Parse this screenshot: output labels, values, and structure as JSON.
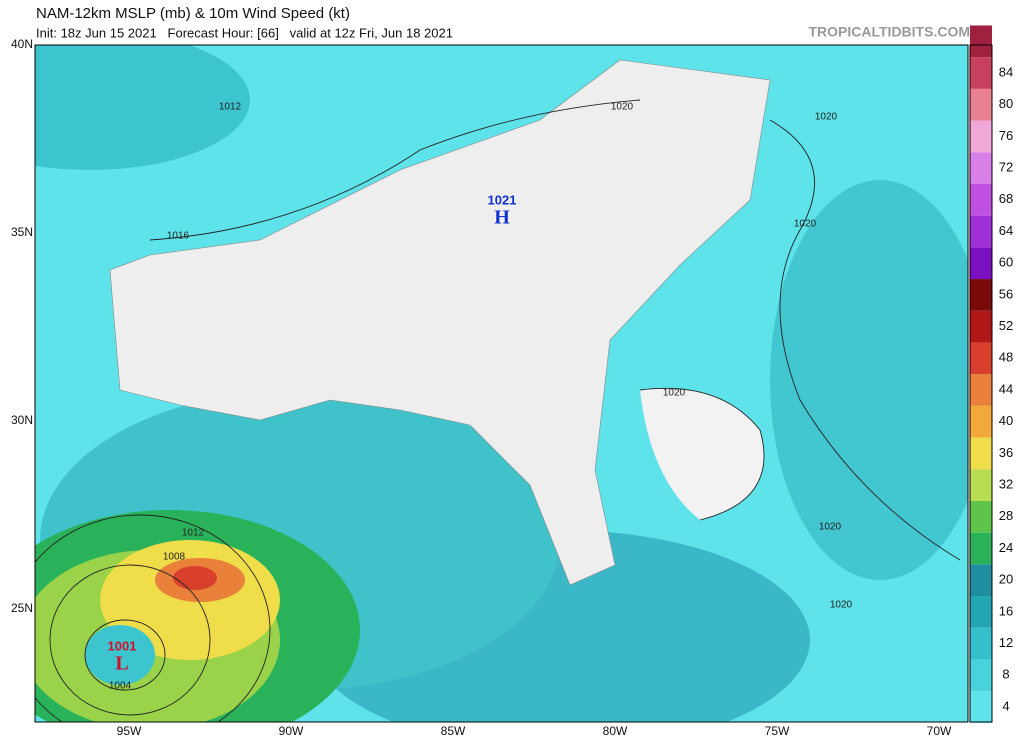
{
  "header": {
    "title": "NAM-12km MSLP (mb) & 10m Wind Speed (kt)",
    "subtitle": "Init: 18z Jun 15 2021   Forecast Hour: [66]   valid at 12z Fri, Jun 18 2021",
    "source": "TROPICALTIDBITS.COM"
  },
  "map": {
    "lat_labels": [
      "40N",
      "35N",
      "30N",
      "25N"
    ],
    "lon_labels": [
      "95W",
      "90W",
      "85W",
      "80W",
      "75W",
      "70W"
    ],
    "isobar_labels": [
      "1012",
      "1016",
      "1020",
      "1020",
      "1020",
      "1020",
      "1020",
      "1020",
      "1012",
      "1008",
      "1004"
    ],
    "centers": [
      {
        "value": "1021",
        "symbol": "H"
      },
      {
        "value": "1001",
        "symbol": "L"
      }
    ]
  },
  "colorbar": {
    "ticks": [
      4,
      8,
      12,
      16,
      20,
      24,
      28,
      32,
      36,
      40,
      44,
      48,
      52,
      56,
      60,
      64,
      68,
      72,
      76,
      80,
      84
    ]
  }
}
